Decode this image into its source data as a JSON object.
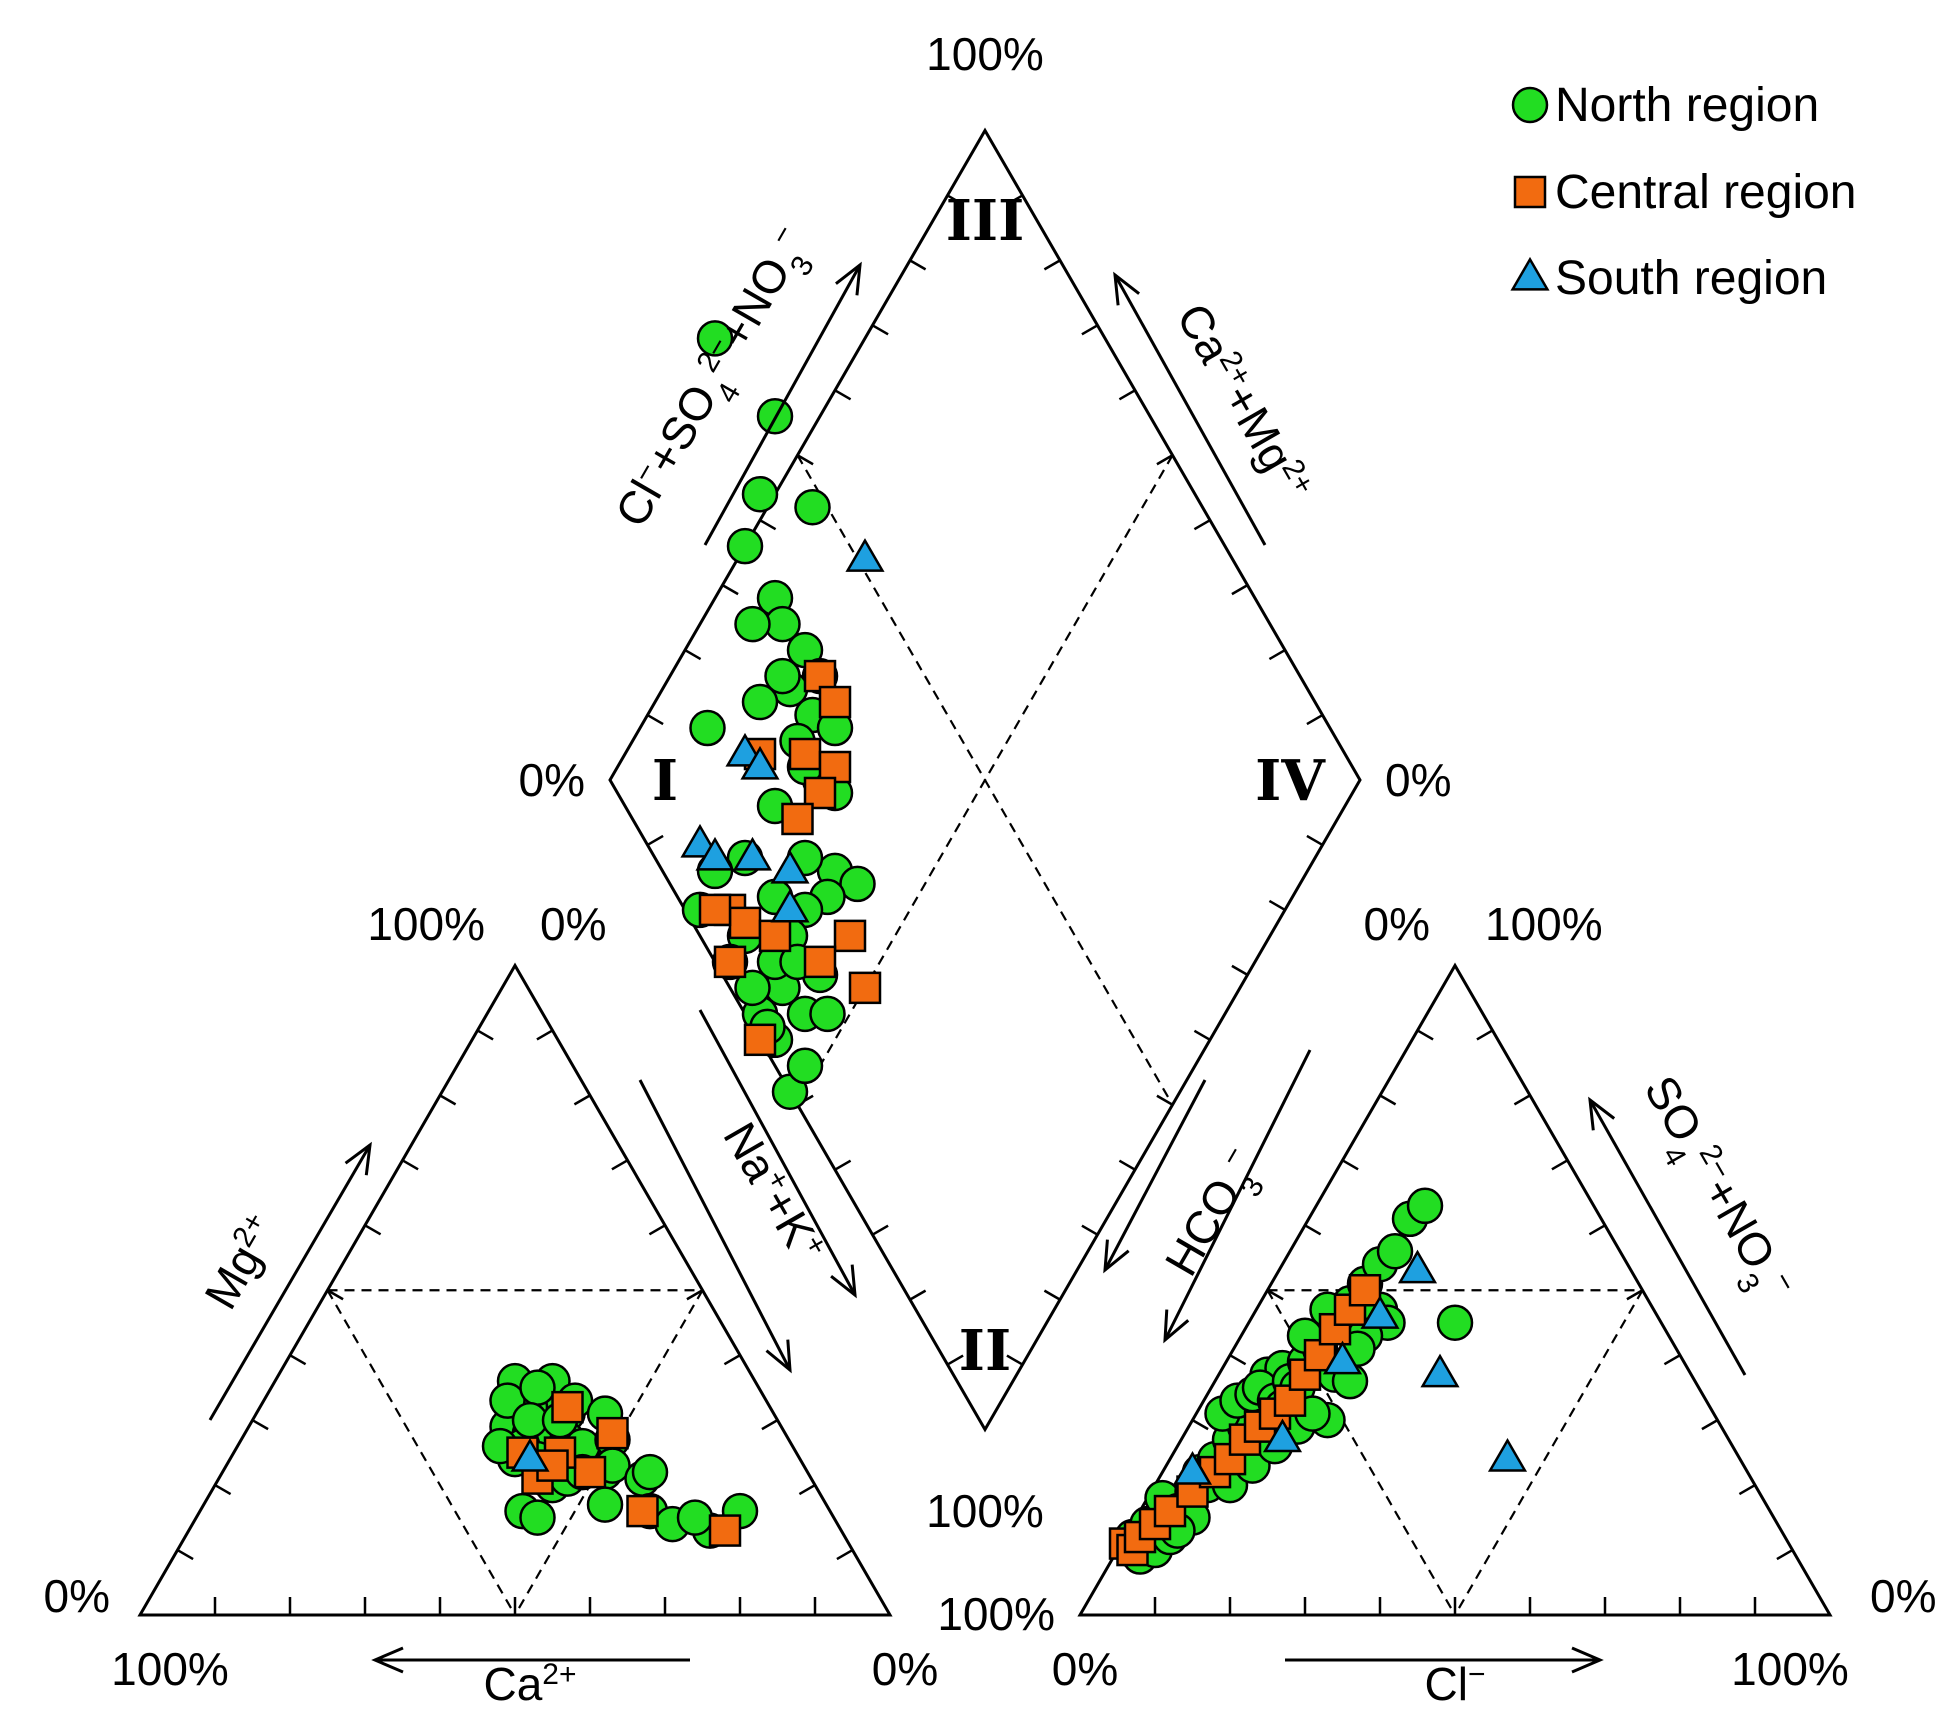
{
  "chart_data": {
    "type": "scatter",
    "subtype": "piper-diagram",
    "percent_labels": {
      "p100": "100%",
      "p0": "0%"
    },
    "axis_labels": {
      "ca": {
        "base": "Ca",
        "sup": "2+"
      },
      "mg": {
        "base": "Mg",
        "sup": "2+"
      },
      "nak": {
        "parts": [
          [
            "Na",
            ""
          ],
          [
            "+",
            "sup"
          ],
          [
            "+K",
            ""
          ],
          [
            "+",
            "sup"
          ]
        ]
      },
      "cl": {
        "base": "Cl",
        "sup": "−"
      },
      "hco3": {
        "parts": [
          [
            "HCO",
            ""
          ],
          [
            "3",
            "sub"
          ],
          [
            "−",
            "sup"
          ]
        ]
      },
      "so4no3": {
        "parts": [
          [
            "SO",
            ""
          ],
          [
            "4",
            "sub"
          ],
          [
            "2−",
            "sup"
          ],
          [
            "+NO",
            ""
          ],
          [
            "3",
            "sub"
          ],
          [
            "−",
            "sup"
          ]
        ]
      },
      "clso4no3": {
        "parts": [
          [
            "Cl",
            ""
          ],
          [
            "−",
            "sup"
          ],
          [
            "+SO",
            ""
          ],
          [
            "4",
            "sub"
          ],
          [
            "2−",
            "sup"
          ],
          [
            "+NO",
            ""
          ],
          [
            "3",
            "sub"
          ],
          [
            "−",
            "sup"
          ]
        ]
      },
      "camg": {
        "parts": [
          [
            "Ca",
            ""
          ],
          [
            "2+",
            "sup"
          ],
          [
            "+Mg",
            ""
          ],
          [
            "2+",
            "sup"
          ]
        ]
      }
    },
    "zones": [
      "I",
      "II",
      "III",
      "IV"
    ],
    "legend": [
      {
        "name": "North region",
        "marker": "circle",
        "color": "#22dd22"
      },
      {
        "name": "Central region",
        "marker": "square",
        "color": "#f26b10"
      },
      {
        "name": "South region",
        "marker": "triangle",
        "color": "#1ea0e0"
      }
    ],
    "series": [
      {
        "name": "North region",
        "diamond": [
          [
            22,
            78
          ],
          [
            14,
            84
          ],
          [
            27,
            71
          ],
          [
            20,
            72
          ],
          [
            18,
            68
          ],
          [
            22,
            64
          ],
          [
            23,
            62
          ],
          [
            26,
            60
          ],
          [
            19,
            62
          ],
          [
            28,
            58
          ],
          [
            24,
            57
          ],
          [
            27,
            55
          ],
          [
            30,
            54
          ],
          [
            23,
            58
          ],
          [
            25,
            53
          ],
          [
            28,
            50
          ],
          [
            20,
            56
          ],
          [
            30,
            49
          ],
          [
            26,
            51
          ],
          [
            13,
            54
          ],
          [
            22,
            48
          ],
          [
            30,
            43
          ],
          [
            18,
            44
          ],
          [
            26,
            44
          ],
          [
            33,
            42
          ],
          [
            22,
            41
          ],
          [
            29,
            41
          ],
          [
            26,
            40
          ],
          [
            24,
            38
          ],
          [
            18,
            38
          ],
          [
            28,
            35
          ],
          [
            23,
            34
          ],
          [
            26,
            32
          ],
          [
            22,
            30
          ],
          [
            20,
            32
          ],
          [
            16,
            36
          ],
          [
            12,
            40
          ],
          [
            14,
            43
          ],
          [
            22,
            36
          ],
          [
            24,
            26
          ],
          [
            26,
            28
          ],
          [
            29,
            32
          ],
          [
            21,
            31
          ],
          [
            19,
            34
          ],
          [
            25,
            36
          ]
        ],
        "cation": [
          [
            49,
            29
          ],
          [
            53,
            32
          ],
          [
            51,
            34
          ],
          [
            54,
            30
          ],
          [
            50,
            36
          ],
          [
            55,
            33
          ],
          [
            57,
            31
          ],
          [
            52,
            32
          ],
          [
            49,
            33
          ],
          [
            55,
            36
          ],
          [
            58,
            33
          ],
          [
            53,
            35
          ],
          [
            52,
            28
          ],
          [
            54,
            26
          ],
          [
            57,
            27
          ],
          [
            56,
            24
          ],
          [
            51,
            26
          ],
          [
            50,
            24
          ],
          [
            48,
            26
          ],
          [
            53,
            24
          ],
          [
            55,
            22
          ],
          [
            58,
            25
          ],
          [
            60,
            24
          ],
          [
            54,
            21
          ],
          [
            55,
            20
          ],
          [
            57,
            21
          ],
          [
            52,
            30
          ],
          [
            56,
            30
          ],
          [
            59,
            26
          ],
          [
            63,
            27
          ],
          [
            62,
            31
          ],
          [
            59,
            22
          ],
          [
            62,
            22
          ],
          [
            63,
            23
          ],
          [
            67,
            21
          ],
          [
            68,
            22
          ],
          [
            51,
            16
          ],
          [
            53,
            15
          ],
          [
            62,
            17
          ],
          [
            68,
            16
          ],
          [
            76,
            13
          ],
          [
            71,
            14
          ],
          [
            74,
            15
          ],
          [
            80,
            16
          ]
        ],
        "anion": [
          [
            7,
            12
          ],
          [
            9,
            14
          ],
          [
            10,
            13
          ],
          [
            12,
            15
          ],
          [
            14,
            18
          ],
          [
            11,
            18
          ],
          [
            13,
            16
          ],
          [
            15,
            19
          ],
          [
            17,
            20
          ],
          [
            16,
            22
          ],
          [
            18,
            24
          ],
          [
            20,
            27
          ],
          [
            22,
            29
          ],
          [
            19,
            31
          ],
          [
            21,
            33
          ],
          [
            23,
            34
          ],
          [
            25,
            37
          ],
          [
            27,
            38
          ],
          [
            24,
            35
          ],
          [
            26,
            33
          ],
          [
            28,
            36
          ],
          [
            30,
            39
          ],
          [
            32,
            41
          ],
          [
            34,
            45
          ],
          [
            36,
            48
          ],
          [
            38,
            51
          ],
          [
            40,
            54
          ],
          [
            42,
            56
          ],
          [
            40,
            47
          ],
          [
            44,
            61
          ],
          [
            46,
            63
          ],
          [
            41,
            45
          ],
          [
            30,
            43
          ],
          [
            33,
            47
          ],
          [
            29,
            35
          ],
          [
            27,
            32
          ],
          [
            25,
            29
          ],
          [
            34,
            37
          ],
          [
            38,
            43
          ],
          [
            33,
            30
          ],
          [
            7,
            10
          ],
          [
            8,
            9
          ],
          [
            10,
            10
          ],
          [
            12,
            12
          ],
          [
            15,
            15
          ],
          [
            13,
            13
          ],
          [
            20,
            20
          ],
          [
            23,
            23
          ],
          [
            26,
            26
          ],
          [
            29,
            29
          ],
          [
            31,
            31
          ],
          [
            36,
            36
          ],
          [
            37,
            41
          ],
          [
            50,
            45
          ]
        ]
      },
      {
        "name": "Central region",
        "diamond": [
          [
            28,
            58
          ],
          [
            30,
            56
          ],
          [
            26,
            52
          ],
          [
            30,
            51
          ],
          [
            20,
            52
          ],
          [
            28,
            49
          ],
          [
            25,
            47
          ],
          [
            16,
            40
          ],
          [
            18,
            39
          ],
          [
            14,
            40
          ],
          [
            22,
            38
          ],
          [
            32,
            38
          ],
          [
            16,
            36
          ],
          [
            34,
            34
          ],
          [
            20,
            30
          ],
          [
            28,
            36
          ]
        ],
        "cation": [
          [
            57,
            32
          ],
          [
            63,
            28
          ],
          [
            60,
            22
          ],
          [
            67,
            16
          ],
          [
            78,
            13
          ],
          [
            51,
            25
          ],
          [
            53,
            21
          ],
          [
            56,
            25
          ],
          [
            55,
            23
          ]
        ],
        "anion": [
          [
            6,
            11
          ],
          [
            7,
            10
          ],
          [
            8,
            12
          ],
          [
            10,
            14
          ],
          [
            12,
            16
          ],
          [
            15,
            19
          ],
          [
            18,
            22
          ],
          [
            20,
            24
          ],
          [
            22,
            27
          ],
          [
            24,
            29
          ],
          [
            26,
            31
          ],
          [
            28,
            33
          ],
          [
            30,
            37
          ],
          [
            32,
            40
          ],
          [
            34,
            44
          ],
          [
            36,
            47
          ],
          [
            38,
            50
          ]
        ]
      },
      {
        "name": "South region",
        "diamond": [
          [
            34,
            67
          ],
          [
            18,
            52
          ],
          [
            20,
            51
          ],
          [
            12,
            45
          ],
          [
            14,
            44
          ],
          [
            19,
            44
          ],
          [
            24,
            43
          ],
          [
            24,
            40
          ]
        ],
        "cation": [
          [
            52,
            24
          ]
        ],
        "anion": [
          [
            15,
            22
          ],
          [
            27,
            27
          ],
          [
            48,
            37
          ],
          [
            57,
            24
          ],
          [
            35,
            39
          ],
          [
            40,
            46
          ],
          [
            45,
            53
          ]
        ]
      }
    ]
  }
}
